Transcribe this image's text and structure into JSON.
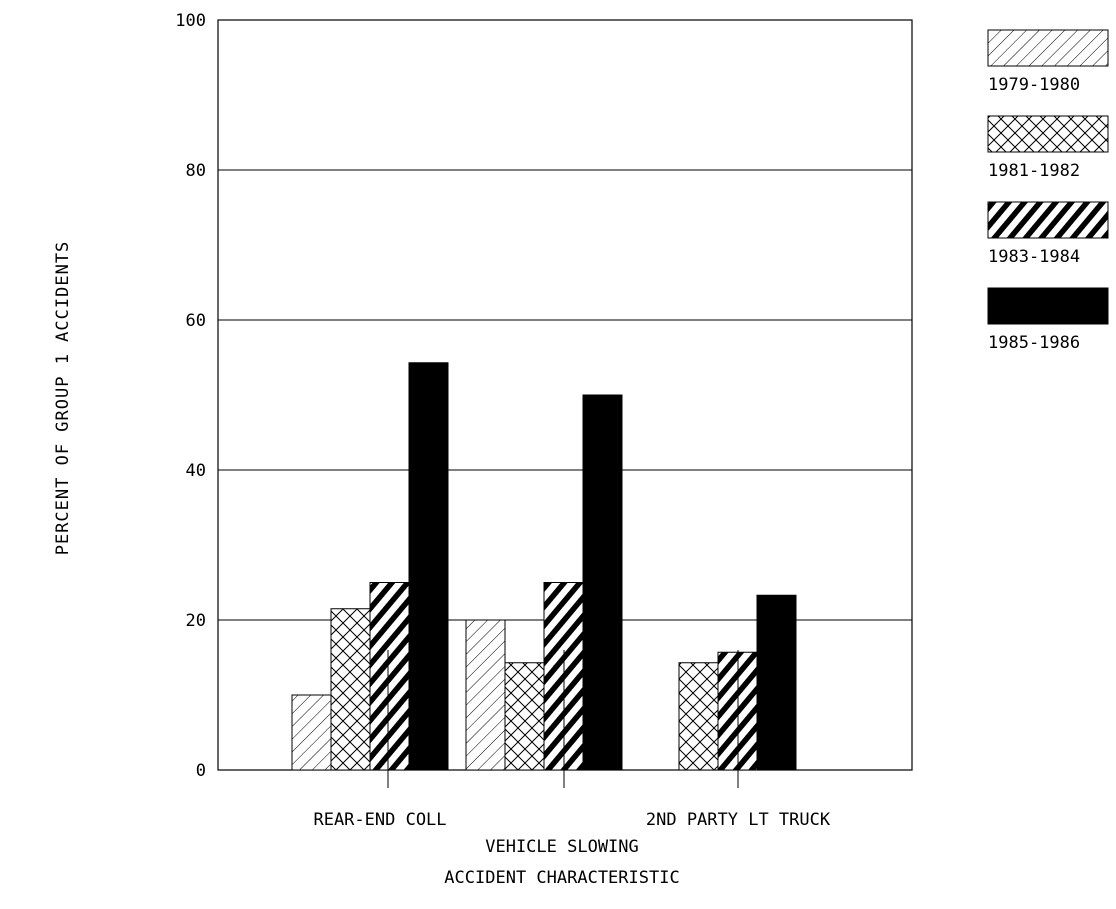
{
  "chart_data": {
    "type": "bar",
    "title": "",
    "xlabel": "ACCIDENT CHARACTERISTIC",
    "ylabel": "PERCENT OF GROUP 1 ACCIDENTS",
    "ylim": [
      0,
      100
    ],
    "yticks": [
      "0",
      "20",
      "40",
      "60",
      "80",
      "100"
    ],
    "categories": [
      "REAR-END COLL",
      "VEHICLE SLOWING",
      "2ND PARTY LT TRUCK"
    ],
    "series": [
      {
        "name": "1979-1980",
        "pattern": "light-hatch",
        "values": [
          10,
          20,
          0
        ]
      },
      {
        "name": "1981-1982",
        "pattern": "crosshatch",
        "values": [
          21.5,
          14.3,
          14.3
        ]
      },
      {
        "name": "1983-1984",
        "pattern": "heavy-hatch",
        "values": [
          25,
          25,
          15.7
        ]
      },
      {
        "name": "1985-1986",
        "pattern": "solid",
        "values": [
          54.3,
          50,
          23.3
        ]
      }
    ],
    "grid": true,
    "legend": "right",
    "colors": {
      "ink": "#000000",
      "background": "#ffffff"
    }
  }
}
